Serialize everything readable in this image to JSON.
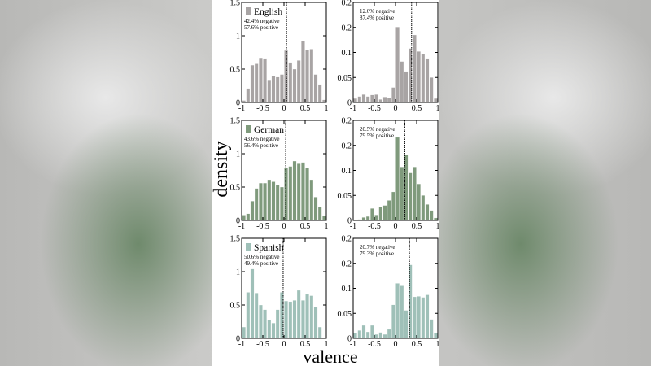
{
  "ylabel": "density",
  "xlabel": "valence",
  "colors": {
    "English": "#a8a4a4",
    "German": "#7f9a7c",
    "Spanish": "#9fc0b8"
  },
  "chart_data": [
    {
      "type": "bar",
      "language": "English",
      "legend": "English",
      "annotation": [
        "42.4% negative",
        "57.6% positive"
      ],
      "xlim": [
        -1,
        1
      ],
      "ylim": [
        0,
        1.5
      ],
      "xticks": [
        "-1",
        "-0.5",
        "0",
        "0.5",
        "1"
      ],
      "yticks": [
        "0",
        "0.5",
        "1",
        "1.5"
      ],
      "yticks_values": [
        0,
        0.5,
        1,
        1.5
      ],
      "threshold": 0.06,
      "bin_starts": [
        -1,
        -0.9,
        -0.8,
        -0.7,
        -0.6,
        -0.5,
        -0.4,
        -0.3,
        -0.2,
        -0.1,
        0,
        0.1,
        0.2,
        0.3,
        0.4,
        0.5,
        0.6,
        0.7,
        0.8,
        0.9
      ],
      "values": [
        0.03,
        0.21,
        0.56,
        0.58,
        0.67,
        0.66,
        0.34,
        0.4,
        0.38,
        0.42,
        0.78,
        0.6,
        0.5,
        0.63,
        0.92,
        0.79,
        0.8,
        0.42,
        0.27,
        0.04
      ]
    },
    {
      "type": "bar",
      "language": "English",
      "annotation": [
        "12.6% negative",
        "87.4% positive"
      ],
      "xlim": [
        -1,
        1
      ],
      "ylim": [
        0,
        0.2
      ],
      "xticks": [
        "-1",
        "-0.5",
        "0",
        "0.5",
        "1"
      ],
      "yticks": [
        "0",
        "0.05",
        "0.1",
        "0.2",
        "0.2"
      ],
      "yticks_values": [
        0,
        0.05,
        0.1,
        0.15,
        0.2
      ],
      "threshold": 0.38,
      "bin_starts": [
        -1,
        -0.9,
        -0.8,
        -0.7,
        -0.6,
        -0.5,
        -0.4,
        -0.3,
        -0.2,
        -0.1,
        0,
        0.1,
        0.2,
        0.3,
        0.4,
        0.5,
        0.6,
        0.7,
        0.8,
        0.9
      ],
      "values": [
        0.008,
        0.012,
        0.016,
        0.012,
        0.015,
        0.016,
        0.006,
        0.011,
        0.009,
        0.03,
        0.151,
        0.082,
        0.062,
        0.108,
        0.135,
        0.102,
        0.097,
        0.088,
        0.05,
        0.008
      ]
    },
    {
      "type": "bar",
      "language": "German",
      "legend": "German",
      "annotation": [
        "43.6% negative",
        "56.4% positive"
      ],
      "xlim": [
        -1,
        1
      ],
      "ylim": [
        0,
        1.5
      ],
      "xticks": [
        "-1",
        "-0.5",
        "0",
        "0.5",
        "1"
      ],
      "yticks": [
        "0",
        "0.5",
        "1",
        "1.5"
      ],
      "yticks_values": [
        0,
        0.5,
        1,
        1.5
      ],
      "threshold": 0.04,
      "bin_starts": [
        -1,
        -0.9,
        -0.8,
        -0.7,
        -0.6,
        -0.5,
        -0.4,
        -0.3,
        -0.2,
        -0.1,
        0,
        0.1,
        0.2,
        0.3,
        0.4,
        0.5,
        0.6,
        0.7,
        0.8,
        0.9
      ],
      "values": [
        0.08,
        0.1,
        0.29,
        0.48,
        0.56,
        0.56,
        0.61,
        0.58,
        0.53,
        0.5,
        0.79,
        0.81,
        0.89,
        0.85,
        0.87,
        0.79,
        0.61,
        0.35,
        0.2,
        0.07
      ]
    },
    {
      "type": "bar",
      "language": "German",
      "annotation": [
        "20.5% negative",
        "79.5% positive"
      ],
      "xlim": [
        -1,
        1
      ],
      "ylim": [
        0,
        0.2
      ],
      "xticks": [
        "-1",
        "-0.5",
        "0",
        "0.5",
        "1"
      ],
      "yticks": [
        "0",
        "0.05",
        "0.1",
        "0.2",
        "0.2"
      ],
      "yticks_values": [
        0,
        0.05,
        0.1,
        0.15,
        0.2
      ],
      "threshold": 0.22,
      "bin_starts": [
        -1,
        -0.9,
        -0.8,
        -0.7,
        -0.6,
        -0.5,
        -0.4,
        -0.3,
        -0.2,
        -0.1,
        0,
        0.1,
        0.2,
        0.3,
        0.4,
        0.5,
        0.6,
        0.7,
        0.8,
        0.9
      ],
      "values": [
        0.001,
        0.002,
        0.006,
        0.008,
        0.024,
        0.011,
        0.027,
        0.03,
        0.04,
        0.057,
        0.166,
        0.107,
        0.131,
        0.095,
        0.107,
        0.073,
        0.05,
        0.032,
        0.02,
        0.005
      ]
    },
    {
      "type": "bar",
      "language": "Spanish",
      "legend": "Spanish",
      "annotation": [
        "50.6% negative",
        "49.4% positive"
      ],
      "xlim": [
        -1,
        1
      ],
      "ylim": [
        0,
        1.5
      ],
      "xticks": [
        "-1",
        "-0.5",
        "0",
        "0.5",
        "1"
      ],
      "yticks": [
        "0",
        "0.5",
        "1",
        "1.5"
      ],
      "yticks_values": [
        0,
        0.5,
        1,
        1.5
      ],
      "threshold": -0.02,
      "bin_starts": [
        -1,
        -0.9,
        -0.8,
        -0.7,
        -0.6,
        -0.5,
        -0.4,
        -0.3,
        -0.2,
        -0.1,
        0,
        0.1,
        0.2,
        0.3,
        0.4,
        0.5,
        0.6,
        0.7,
        0.8,
        0.9
      ],
      "values": [
        0.17,
        0.69,
        1.04,
        0.68,
        0.5,
        0.43,
        0.27,
        0.23,
        0.43,
        0.69,
        0.56,
        0.55,
        0.57,
        0.72,
        0.57,
        0.66,
        0.64,
        0.47,
        0.17,
        0
      ]
    },
    {
      "type": "bar",
      "language": "Spanish",
      "annotation": [
        "20.7% negative",
        "79.3% positive"
      ],
      "xlim": [
        -1,
        1
      ],
      "ylim": [
        0,
        0.2
      ],
      "xticks": [
        "-1",
        "-0.5",
        "0",
        "0.5",
        "1"
      ],
      "yticks": [
        "0",
        "0.05",
        "0.1",
        "0.2",
        "0.2"
      ],
      "yticks_values": [
        0,
        0.05,
        0.1,
        0.15,
        0.2
      ],
      "threshold": 0.33,
      "bin_starts": [
        -1,
        -0.9,
        -0.8,
        -0.7,
        -0.6,
        -0.5,
        -0.4,
        -0.3,
        -0.2,
        -0.1,
        0,
        0.1,
        0.2,
        0.3,
        0.4,
        0.5,
        0.6,
        0.7,
        0.8,
        0.9
      ],
      "values": [
        0.011,
        0.016,
        0.026,
        0.013,
        0.026,
        0.008,
        0.012,
        0.008,
        0.018,
        0.067,
        0.11,
        0.105,
        0.056,
        0.147,
        0.083,
        0.084,
        0.082,
        0.087,
        0.038,
        0.01
      ]
    }
  ]
}
